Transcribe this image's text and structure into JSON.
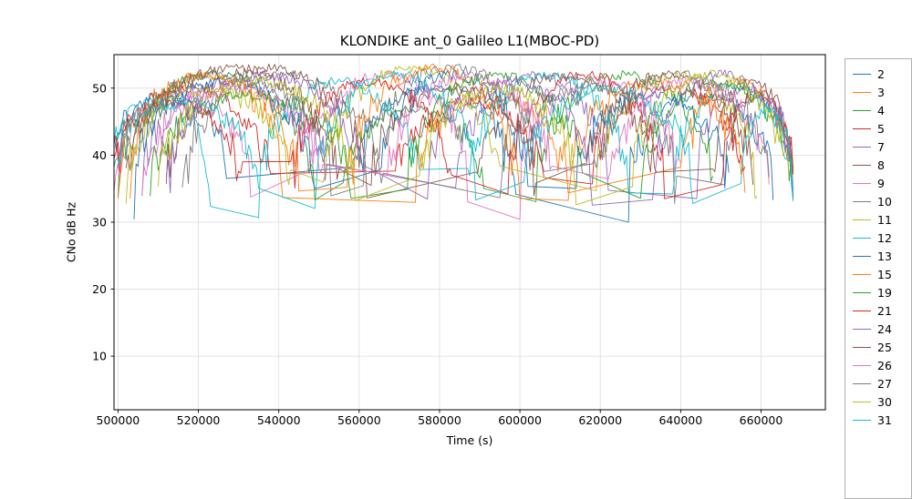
{
  "figure": {
    "kind": "matplotlib-line-figure"
  },
  "chart_data": {
    "type": "line",
    "title": "KLONDIKE ant_0 Galileo L1(MBOC-PD)",
    "xlabel": "Time (s)",
    "ylabel": "CNo dB Hz",
    "xlim": [
      499000,
      676000
    ],
    "ylim": [
      2,
      55
    ],
    "xticks": [
      500000,
      520000,
      540000,
      560000,
      580000,
      600000,
      620000,
      640000,
      660000
    ],
    "yticks": [
      10,
      20,
      30,
      40,
      50
    ],
    "grid": true,
    "legend_position": "right-outside",
    "series_encoding": "Each series is a satellite CNo trace made of noisy arch-shaped passes; arcs = [start_time_s, end_time_s, peak_CNo_dBHz], tails fall to edge_level (~35-37 dBHz) with noise; consecutive arcs are joined by thin straight segments.",
    "series": [
      {
        "name": "2",
        "color": "#1f77b4",
        "edge_level": 36,
        "arcs": [
          [
            497000,
            527000,
            49
          ],
          [
            558000,
            599000,
            50
          ],
          [
            627000,
            663000,
            49
          ]
        ]
      },
      {
        "name": "3",
        "color": "#ff7f0e",
        "edge_level": 36,
        "arcs": [
          [
            503000,
            541000,
            52
          ],
          [
            574000,
            612000,
            49
          ],
          [
            640000,
            668000,
            51
          ]
        ]
      },
      {
        "name": "4",
        "color": "#2ca02c",
        "edge_level": 35.5,
        "arcs": [
          [
            500000,
            549000,
            52
          ],
          [
            556000,
            591000,
            47
          ],
          [
            604000,
            648000,
            52
          ]
        ]
      },
      {
        "name": "5",
        "color": "#d62728",
        "edge_level": 36,
        "arcs": [
          [
            498000,
            538000,
            50
          ],
          [
            569000,
            606000,
            48
          ],
          [
            618000,
            656000,
            50
          ]
        ]
      },
      {
        "name": "7",
        "color": "#9467bd",
        "edge_level": 36.5,
        "arcs": [
          [
            506000,
            552000,
            51
          ],
          [
            584000,
            622000,
            52
          ],
          [
            644000,
            668000,
            50
          ]
        ]
      },
      {
        "name": "8",
        "color": "#8c564b",
        "edge_level": 36,
        "arcs": [
          [
            512000,
            562000,
            53
          ],
          [
            589000,
            634000,
            52
          ],
          [
            648000,
            668000,
            51
          ]
        ]
      },
      {
        "name": "9",
        "color": "#e377c2",
        "edge_level": 36,
        "arcs": [
          [
            499000,
            533000,
            49
          ],
          [
            547000,
            587000,
            52
          ],
          [
            600000,
            640000,
            51
          ]
        ]
      },
      {
        "name": "10",
        "color": "#7f7f7f",
        "edge_level": 36.5,
        "arcs": [
          [
            516000,
            566000,
            52
          ],
          [
            595000,
            639000,
            50
          ],
          [
            651000,
            668000,
            49
          ]
        ]
      },
      {
        "name": "11",
        "color": "#bcbd22",
        "edge_level": 35.5,
        "arcs": [
          [
            502000,
            543000,
            50
          ],
          [
            551000,
            595000,
            53
          ],
          [
            619000,
            659000,
            52
          ]
        ]
      },
      {
        "name": "12",
        "color": "#17becf",
        "edge_level": 35,
        "arcs": [
          [
            496000,
            523000,
            48
          ],
          [
            535000,
            575000,
            51
          ],
          [
            587000,
            627000,
            52
          ],
          [
            638000,
            668000,
            50
          ]
        ]
      },
      {
        "name": "13",
        "color": "#1f77b4",
        "edge_level": 36,
        "arcs": [
          [
            504000,
            549000,
            51
          ],
          [
            565000,
            602000,
            52
          ],
          [
            614000,
            652000,
            49
          ]
        ]
      },
      {
        "name": "15",
        "color": "#ff7f0e",
        "edge_level": 36,
        "arcs": [
          [
            500000,
            545000,
            52
          ],
          [
            557000,
            600000,
            53
          ],
          [
            612000,
            656000,
            51
          ]
        ]
      },
      {
        "name": "19",
        "color": "#2ca02c",
        "edge_level": 35.5,
        "arcs": [
          [
            508000,
            558000,
            49
          ],
          [
            572000,
            616000,
            52
          ],
          [
            630000,
            668000,
            51
          ]
        ]
      },
      {
        "name": "21",
        "color": "#d62728",
        "edge_level": 36,
        "arcs": [
          [
            497000,
            531000,
            48
          ],
          [
            543000,
            583000,
            51
          ],
          [
            597000,
            636000,
            52
          ],
          [
            650000,
            668000,
            49
          ]
        ]
      },
      {
        "name": "24",
        "color": "#9467bd",
        "edge_level": 36,
        "arcs": [
          [
            512000,
            561000,
            52
          ],
          [
            577000,
            618000,
            51
          ],
          [
            633000,
            668000,
            52
          ]
        ]
      },
      {
        "name": "25",
        "color": "#8c564b",
        "edge_level": 36,
        "arcs": [
          [
            502000,
            555000,
            53
          ],
          [
            563000,
            604000,
            50
          ],
          [
            616000,
            658000,
            52
          ]
        ]
      },
      {
        "name": "26",
        "color": "#e377c2",
        "edge_level": 36,
        "arcs": [
          [
            506000,
            551000,
            50
          ],
          [
            567000,
            608000,
            52
          ],
          [
            622000,
            662000,
            51
          ]
        ]
      },
      {
        "name": "27",
        "color": "#7f7f7f",
        "edge_level": 36.5,
        "arcs": [
          [
            500000,
            553000,
            52
          ],
          [
            561000,
            606000,
            53
          ],
          [
            618000,
            662000,
            52
          ]
        ]
      },
      {
        "name": "30",
        "color": "#bcbd22",
        "edge_level": 36,
        "arcs": [
          [
            510000,
            559000,
            51
          ],
          [
            575000,
            614000,
            50
          ],
          [
            628000,
            667000,
            52
          ]
        ]
      },
      {
        "name": "31",
        "color": "#17becf",
        "edge_level": 35.5,
        "arcs": [
          [
            497000,
            535000,
            48
          ],
          [
            549000,
            589000,
            52
          ],
          [
            601000,
            643000,
            50
          ],
          [
            655000,
            668000,
            47
          ]
        ]
      }
    ]
  }
}
